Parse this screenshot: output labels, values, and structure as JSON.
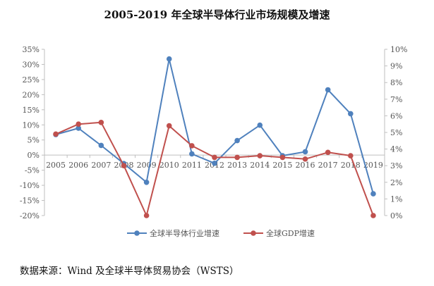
{
  "chart_data": {
    "type": "line",
    "title": "2005-2019 年全球半导体行业市场规模及增速",
    "categories": [
      "2005",
      "2006",
      "2007",
      "2008",
      "2009",
      "2010",
      "2011",
      "2012",
      "2013",
      "2014",
      "2015",
      "2016",
      "2017",
      "2018",
      "2019"
    ],
    "series": [
      {
        "name": "全球半导体行业增速",
        "axis": "left",
        "color": "#4F81BD",
        "values": [
          6.8,
          8.9,
          3.2,
          -2.8,
          -9.0,
          31.8,
          0.4,
          -2.7,
          4.8,
          9.9,
          -0.2,
          1.1,
          21.6,
          13.7,
          -12.8
        ]
      },
      {
        "name": "全球GDP增速",
        "axis": "right",
        "color": "#C0504D",
        "values": [
          4.9,
          5.5,
          5.6,
          3.0,
          0.0,
          5.4,
          4.2,
          3.5,
          3.5,
          3.6,
          3.5,
          3.4,
          3.8,
          3.6,
          0.0
        ]
      }
    ],
    "y_left": {
      "min": -20,
      "max": 35,
      "step": 5,
      "format": "%"
    },
    "y_right": {
      "min": 0,
      "max": 10,
      "step": 1,
      "format": "%"
    },
    "grid": false,
    "legend_position": "bottom"
  },
  "source_note": "数据来源：Wind 及全球半导体贸易协会（WSTS）"
}
